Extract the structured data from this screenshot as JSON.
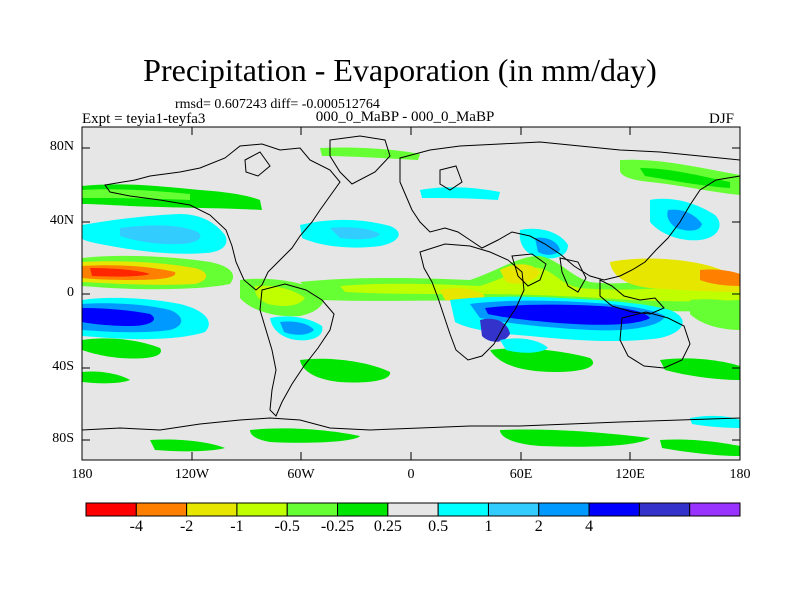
{
  "title": "Precipitation - Evaporation (in mm/day)",
  "stats": "rmsd= 0.607243 diff= -0.000512764",
  "experiment": "Expt = teyia1-teyfa3",
  "case": "000_0_MaBP - 000_0_MaBP",
  "season": "DJF",
  "lat_ticks": [
    "80N",
    "40N",
    "0",
    "40S",
    "80S"
  ],
  "lon_ticks": [
    "180",
    "120W",
    "60W",
    "0",
    "60E",
    "120E",
    "180"
  ],
  "colorbar": {
    "colors": [
      "#ff0000",
      "#ff8000",
      "#e6e600",
      "#bfff00",
      "#66ff33",
      "#00e600",
      "#e6e6e6",
      "#00ffff",
      "#33ccff",
      "#0099ff",
      "#0000ff",
      "#3333cc",
      "#9933ff"
    ],
    "labels": [
      "-4",
      "-2",
      "-1",
      "-0.5",
      "-0.25",
      "0.25",
      "0.5",
      "1",
      "2",
      "4"
    ]
  }
}
